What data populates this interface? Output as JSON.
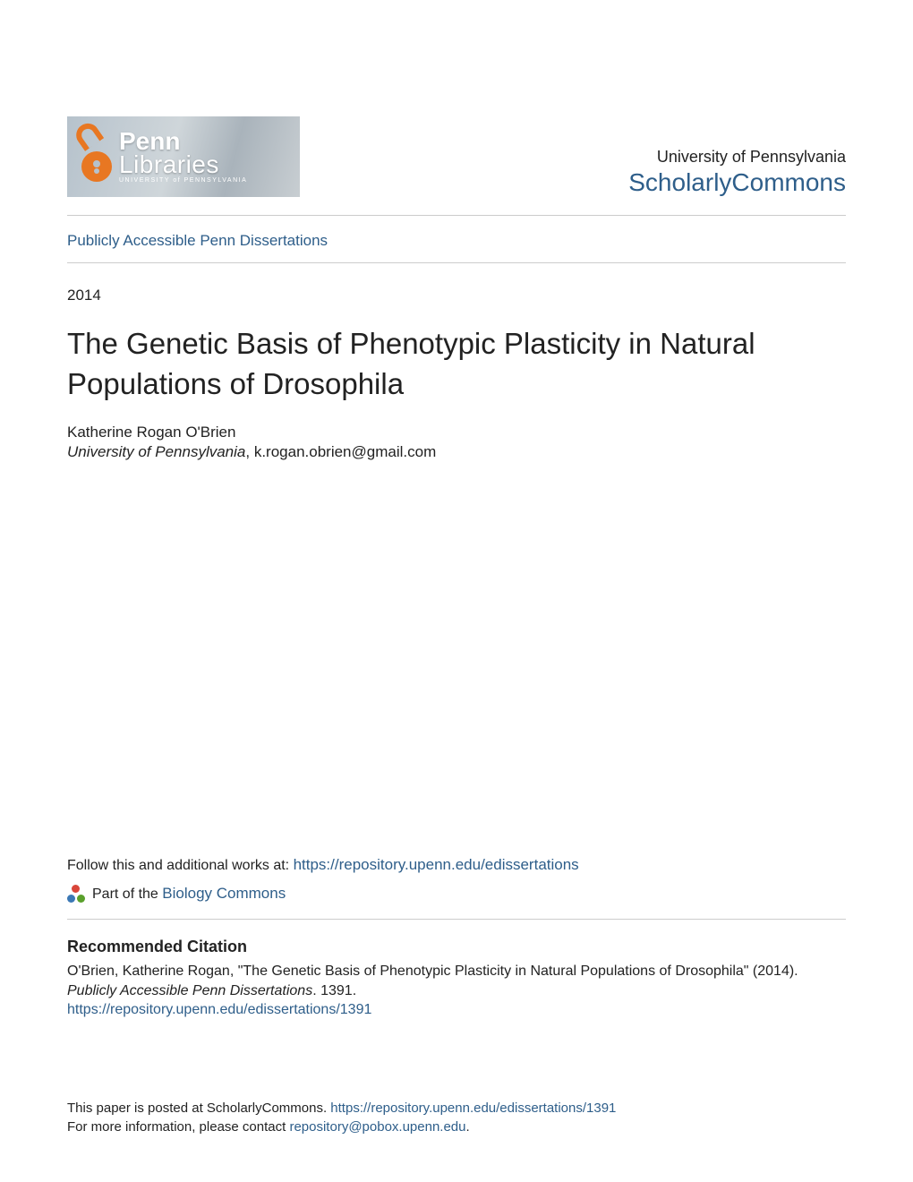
{
  "colors": {
    "link": "#2e5e8a",
    "text": "#222222",
    "rule": "#cccccc",
    "accent_orange": "#e87722",
    "logo_bg_gradient": [
      "#b6c2cc",
      "#cfd6da",
      "#a9b3bb",
      "#c8ced2"
    ],
    "background": "#ffffff",
    "network_icon": {
      "red": "#d9463a",
      "blue": "#3b78b5",
      "green": "#5aa02c"
    }
  },
  "typography": {
    "title_fontsize": 33,
    "body_fontsize": 17,
    "small_fontsize": 16,
    "repo_fontsize": 28,
    "uni_fontsize": 18,
    "heading_fontsize": 18,
    "footer_fontsize": 15,
    "font_family": "Arial, Helvetica, sans-serif"
  },
  "header": {
    "logo": {
      "line1": "Penn",
      "line2": "Libraries",
      "line3": "UNIVERSITY of PENNSYLVANIA",
      "icon_name": "open-access-lock"
    },
    "university": "University of Pennsylvania",
    "repository": "ScholarlyCommons"
  },
  "collection_link": "Publicly Accessible Penn Dissertations",
  "year": "2014",
  "title": "The Genetic Basis of Phenotypic Plasticity in Natural Populations of Drosophila",
  "author": {
    "name": "Katherine Rogan O'Brien",
    "institution": "University of Pennsylvania",
    "email": "k.rogan.obrien@gmail.com"
  },
  "follow": {
    "prefix": "Follow this and additional works at: ",
    "url": "https://repository.upenn.edu/edissertations"
  },
  "part_of": {
    "prefix": "Part of the ",
    "commons": "Biology Commons"
  },
  "citation": {
    "heading": "Recommended Citation",
    "text_pre": "O'Brien, Katherine Rogan, \"The Genetic Basis of Phenotypic Plasticity in Natural Populations of Drosophila\" (2014). ",
    "series": "Publicly Accessible Penn Dissertations",
    "text_post": ". 1391.",
    "url": "https://repository.upenn.edu/edissertations/1391"
  },
  "footer": {
    "line1_pre": "This paper is posted at ScholarlyCommons. ",
    "line1_url": "https://repository.upenn.edu/edissertations/1391",
    "line2_pre": "For more information, please contact ",
    "line2_email": "repository@pobox.upenn.edu",
    "line2_post": "."
  }
}
